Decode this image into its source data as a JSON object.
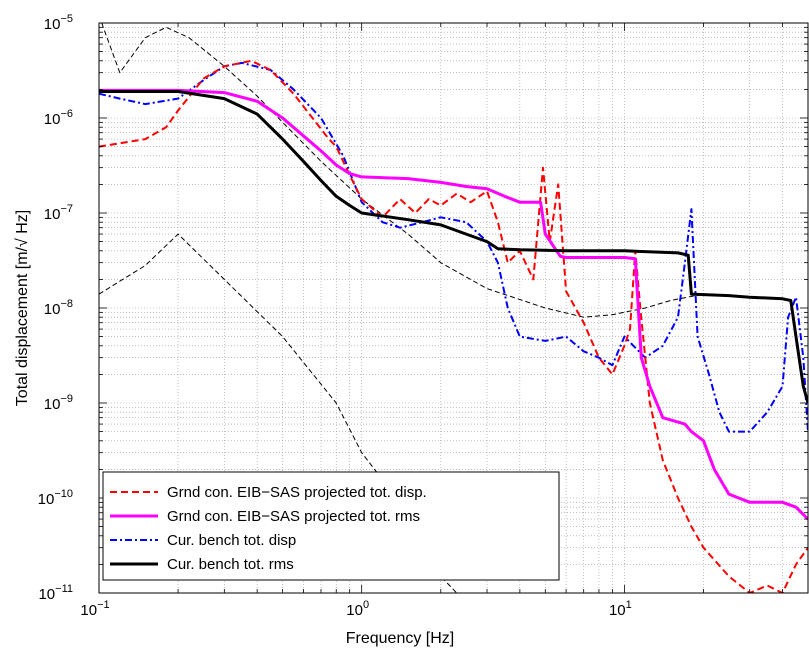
{
  "chart_data": {
    "type": "line",
    "title": "",
    "xlabel": "Frequency [Hz]",
    "ylabel": "Total displacement [m/√ Hz]",
    "xscale": "log",
    "yscale": "log",
    "xlim": [
      0.1,
      50
    ],
    "ylim": [
      1e-11,
      1e-05
    ],
    "grid": true,
    "legend_position": "bottom-left",
    "x_ticks": [
      {
        "value": 0.1,
        "base": "10",
        "exp": "−1"
      },
      {
        "value": 1,
        "base": "10",
        "exp": "0"
      },
      {
        "value": 10,
        "base": "10",
        "exp": "1"
      }
    ],
    "y_ticks": [
      {
        "value": 1e-11,
        "base": "10",
        "exp": "−11"
      },
      {
        "value": 1e-10,
        "base": "10",
        "exp": "−10"
      },
      {
        "value": 1e-09,
        "base": "10",
        "exp": "−9"
      },
      {
        "value": 1e-08,
        "base": "10",
        "exp": "−8"
      },
      {
        "value": 1e-07,
        "base": "10",
        "exp": "−7"
      },
      {
        "value": 1e-06,
        "base": "10",
        "exp": "−6"
      },
      {
        "value": 1e-05,
        "base": "10",
        "exp": "−5"
      }
    ],
    "series": [
      {
        "name": "Grnd con. EIB−SAS projected tot. disp.",
        "color": "#ff0000",
        "style": "dashed",
        "points": [
          [
            0.1,
            5e-07
          ],
          [
            0.15,
            6e-07
          ],
          [
            0.18,
            8e-07
          ],
          [
            0.2,
            1.2e-06
          ],
          [
            0.25,
            2.6e-06
          ],
          [
            0.3,
            3.5e-06
          ],
          [
            0.38,
            4e-06
          ],
          [
            0.45,
            3.2e-06
          ],
          [
            0.55,
            1.8e-06
          ],
          [
            0.65,
            1e-06
          ],
          [
            0.75,
            6e-07
          ],
          [
            0.8,
            5e-07
          ],
          [
            0.9,
            2.5e-07
          ],
          [
            1.0,
            1.4e-07
          ],
          [
            1.2,
            9e-08
          ],
          [
            1.4,
            1.4e-07
          ],
          [
            1.6,
            1e-07
          ],
          [
            1.8,
            1.4e-07
          ],
          [
            2.0,
            1.2e-07
          ],
          [
            2.3,
            1.6e-07
          ],
          [
            2.6,
            1.3e-07
          ],
          [
            3.0,
            1.7e-07
          ],
          [
            3.3,
            8e-08
          ],
          [
            3.6,
            3e-08
          ],
          [
            4.0,
            4e-08
          ],
          [
            4.5,
            2e-08
          ],
          [
            4.9,
            3e-07
          ],
          [
            5.2,
            5e-08
          ],
          [
            5.6,
            2e-07
          ],
          [
            6.0,
            1.5e-08
          ],
          [
            7.0,
            7e-09
          ],
          [
            8.0,
            3e-09
          ],
          [
            9.0,
            2e-09
          ],
          [
            10.0,
            4e-09
          ],
          [
            10.5,
            6e-09
          ],
          [
            11.0,
            4e-08
          ],
          [
            11.5,
            1e-08
          ],
          [
            12.5,
            1e-09
          ],
          [
            14.0,
            2.5e-10
          ],
          [
            16.0,
            1e-10
          ],
          [
            18.0,
            5e-11
          ],
          [
            20.0,
            3e-11
          ],
          [
            25.0,
            1.5e-11
          ],
          [
            30.0,
            1e-11
          ],
          [
            35.0,
            1.2e-11
          ],
          [
            40.0,
            1e-11
          ],
          [
            45.0,
            2e-11
          ],
          [
            50.0,
            3e-11
          ]
        ]
      },
      {
        "name": "Grnd con. EIB−SAS projected tot. rms",
        "color": "#ff00ff",
        "style": "solid",
        "points": [
          [
            0.1,
            1.95e-06
          ],
          [
            0.2,
            1.95e-06
          ],
          [
            0.3,
            1.85e-06
          ],
          [
            0.4,
            1.5e-06
          ],
          [
            0.5,
            1e-06
          ],
          [
            0.6,
            6.5e-07
          ],
          [
            0.7,
            4.5e-07
          ],
          [
            0.8,
            3.2e-07
          ],
          [
            0.9,
            2.6e-07
          ],
          [
            1.0,
            2.4e-07
          ],
          [
            1.5,
            2.3e-07
          ],
          [
            2.0,
            2.1e-07
          ],
          [
            2.5,
            1.9e-07
          ],
          [
            3.0,
            1.8e-07
          ],
          [
            3.5,
            1.5e-07
          ],
          [
            4.0,
            1.3e-07
          ],
          [
            4.8,
            1.3e-07
          ],
          [
            5.0,
            6e-08
          ],
          [
            5.7,
            3.5e-08
          ],
          [
            6.0,
            3.4e-08
          ],
          [
            10.0,
            3.4e-08
          ],
          [
            11.0,
            3.3e-08
          ],
          [
            11.6,
            3e-09
          ],
          [
            12.5,
            1.5e-09
          ],
          [
            14.0,
            7e-10
          ],
          [
            17.0,
            6e-10
          ],
          [
            18.0,
            5e-10
          ],
          [
            20.0,
            4e-10
          ],
          [
            22.0,
            2e-10
          ],
          [
            25.0,
            1.1e-10
          ],
          [
            30.0,
            9e-11
          ],
          [
            40.0,
            9e-11
          ],
          [
            45.0,
            8e-11
          ],
          [
            50.0,
            6e-11
          ]
        ]
      },
      {
        "name": "Cur. bench tot. disp",
        "color": "#0000ff",
        "style": "dashdot",
        "points": [
          [
            0.1,
            1.8e-06
          ],
          [
            0.12,
            1.6e-06
          ],
          [
            0.15,
            1.4e-06
          ],
          [
            0.2,
            1.6e-06
          ],
          [
            0.25,
            2.5e-06
          ],
          [
            0.3,
            3.5e-06
          ],
          [
            0.35,
            3.8e-06
          ],
          [
            0.45,
            3.2e-06
          ],
          [
            0.55,
            2e-06
          ],
          [
            0.7,
            1e-06
          ],
          [
            0.85,
            4e-07
          ],
          [
            1.0,
            1.3e-07
          ],
          [
            1.2,
            8e-08
          ],
          [
            1.4,
            7e-08
          ],
          [
            1.7,
            8e-08
          ],
          [
            2.0,
            9e-08
          ],
          [
            2.5,
            8e-08
          ],
          [
            3.0,
            5e-08
          ],
          [
            3.3,
            3e-08
          ],
          [
            3.6,
            1e-08
          ],
          [
            4.0,
            5e-09
          ],
          [
            5.0,
            4.5e-09
          ],
          [
            6.0,
            5e-09
          ],
          [
            7.0,
            3.5e-09
          ],
          [
            8.0,
            3e-09
          ],
          [
            9.0,
            2.5e-09
          ],
          [
            10.0,
            5e-09
          ],
          [
            12.0,
            3e-09
          ],
          [
            14.0,
            4e-09
          ],
          [
            16.0,
            8e-09
          ],
          [
            17.0,
            3e-08
          ],
          [
            18.0,
            1.1e-07
          ],
          [
            19.0,
            5e-09
          ],
          [
            21.0,
            2e-09
          ],
          [
            23.0,
            8e-10
          ],
          [
            25.0,
            5e-10
          ],
          [
            30.0,
            5e-10
          ],
          [
            35.0,
            8e-10
          ],
          [
            40.0,
            1.5e-09
          ],
          [
            42.0,
            8e-09
          ],
          [
            45.0,
            1.3e-08
          ],
          [
            48.0,
            3e-09
          ],
          [
            50.0,
            5e-10
          ]
        ]
      },
      {
        "name": "Cur. bench tot. rms",
        "color": "#000000",
        "style": "solid",
        "points": [
          [
            0.1,
            1.9e-06
          ],
          [
            0.2,
            1.9e-06
          ],
          [
            0.3,
            1.6e-06
          ],
          [
            0.4,
            1.1e-06
          ],
          [
            0.5,
            6e-07
          ],
          [
            0.6,
            3.5e-07
          ],
          [
            0.7,
            2.2e-07
          ],
          [
            0.8,
            1.5e-07
          ],
          [
            0.9,
            1.2e-07
          ],
          [
            1.0,
            1e-07
          ],
          [
            1.5,
            8.5e-08
          ],
          [
            2.0,
            7.5e-08
          ],
          [
            2.5,
            6e-08
          ],
          [
            3.0,
            5e-08
          ],
          [
            3.3,
            4.2e-08
          ],
          [
            4.0,
            4.1e-08
          ],
          [
            6.0,
            4e-08
          ],
          [
            10.0,
            4e-08
          ],
          [
            16.0,
            3.8e-08
          ],
          [
            17.5,
            3.6e-08
          ],
          [
            18.0,
            1.4e-08
          ],
          [
            25.0,
            1.35e-08
          ],
          [
            30.0,
            1.3e-08
          ],
          [
            40.0,
            1.25e-08
          ],
          [
            43.0,
            1.2e-08
          ],
          [
            45.0,
            5e-09
          ],
          [
            48.0,
            1.5e-09
          ],
          [
            50.0,
            1e-09
          ]
        ]
      },
      {
        "name": "",
        "color": "#000000",
        "style": "thin-dashed",
        "points": [
          [
            0.1,
            1.2e-05
          ],
          [
            0.12,
            3e-06
          ],
          [
            0.15,
            7e-06
          ],
          [
            0.18,
            9e-06
          ],
          [
            0.22,
            7e-06
          ],
          [
            0.3,
            3.5e-06
          ],
          [
            0.4,
            1.7e-06
          ],
          [
            0.5,
            9e-07
          ],
          [
            0.7,
            3.5e-07
          ],
          [
            1.0,
            1.4e-07
          ],
          [
            1.5,
            6e-08
          ],
          [
            2.0,
            3e-08
          ],
          [
            3.0,
            1.6e-08
          ],
          [
            5.0,
            1e-08
          ],
          [
            7.0,
            8e-09
          ],
          [
            9.0,
            8.5e-09
          ],
          [
            12.0,
            1e-08
          ],
          [
            15.0,
            1.2e-08
          ],
          [
            20.0,
            1.4e-08
          ]
        ]
      },
      {
        "name": "",
        "color": "#000000",
        "style": "thin-dashed",
        "points": [
          [
            0.1,
            1.4e-08
          ],
          [
            0.15,
            2.8e-08
          ],
          [
            0.2,
            6e-08
          ],
          [
            0.3,
            2e-08
          ],
          [
            0.5,
            5e-09
          ],
          [
            0.8,
            1e-09
          ],
          [
            1.0,
            3e-10
          ],
          [
            1.5,
            7e-11
          ],
          [
            2.0,
            1.5e-11
          ],
          [
            2.3,
            1e-11
          ]
        ]
      }
    ]
  }
}
